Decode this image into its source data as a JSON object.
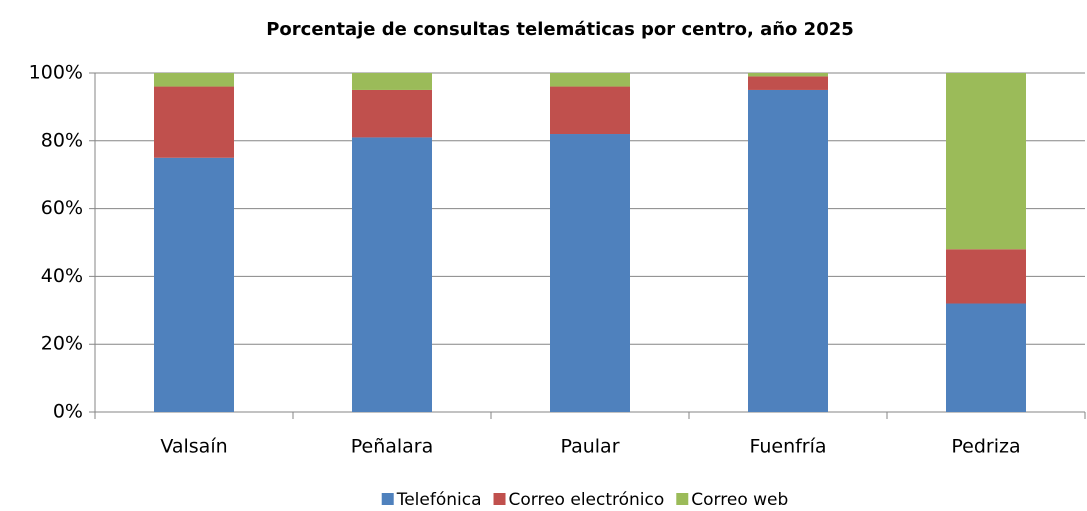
{
  "chart_data": {
    "type": "stacked_bar_100",
    "title": "Porcentaje de consultas telemáticas por centro, año 2025",
    "categories": [
      "Valsaín",
      "Peñalara",
      "Paular",
      "Fuenfría",
      "Pedriza"
    ],
    "series": [
      {
        "name": "Telefónica",
        "color": "#4f81bd",
        "values": [
          75,
          81,
          82,
          95,
          32
        ]
      },
      {
        "name": "Correo electrónico",
        "color": "#c0504d",
        "values": [
          21,
          14,
          14,
          4,
          16
        ]
      },
      {
        "name": "Correo web",
        "color": "#9bbb59",
        "values": [
          4,
          5,
          4,
          1,
          52
        ]
      }
    ],
    "ylim": [
      0,
      100
    ],
    "yticks": [
      {
        "value": 0,
        "label": "0%"
      },
      {
        "value": 20,
        "label": "20%"
      },
      {
        "value": 40,
        "label": "40%"
      },
      {
        "value": 60,
        "label": "60%"
      },
      {
        "value": 80,
        "label": "80%"
      },
      {
        "value": 100,
        "label": "100%"
      }
    ],
    "grid": true,
    "legend": "bottom"
  }
}
